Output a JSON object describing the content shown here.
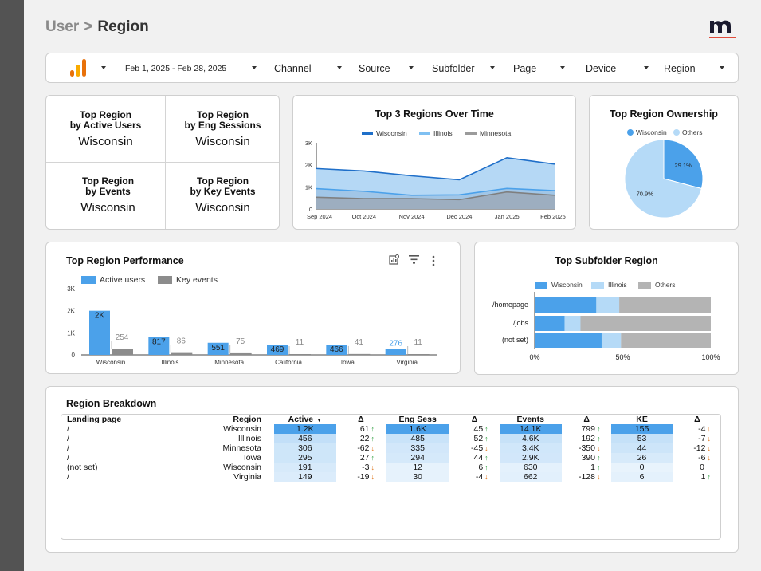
{
  "breadcrumb": {
    "parent": "User",
    "separator": ">",
    "current": "Region"
  },
  "filters": {
    "date_range": "Feb 1, 2025 - Feb 28, 2025",
    "items": [
      "Channel",
      "Source",
      "Subfolder",
      "Page",
      "Device",
      "Region"
    ]
  },
  "kpis": [
    {
      "label_1": "Top Region",
      "label_2": "by Active Users",
      "value": "Wisconsin"
    },
    {
      "label_1": "Top Region",
      "label_2": "by Eng Sessions",
      "value": "Wisconsin"
    },
    {
      "label_1": "Top Region",
      "label_2": "by Events",
      "value": "Wisconsin"
    },
    {
      "label_1": "Top Region",
      "label_2": "by Key Events",
      "value": "Wisconsin"
    }
  ],
  "colors": {
    "wisconsin": "#4ba1ea",
    "illinois": "#b5daf7",
    "minnesota": "#9b9b9b",
    "others": "#b4b4b4",
    "key_events": "#8c8c8c",
    "up": "#2a9d3c",
    "down": "#e0791f"
  },
  "chart_data": [
    {
      "type": "area",
      "title": "Top 3 Regions Over Time",
      "x": [
        "Sep 2024",
        "Oct 2024",
        "Nov 2024",
        "Dec 2024",
        "Jan 2025",
        "Feb 2025"
      ],
      "yticks": [
        "0",
        "1K",
        "2K",
        "3K"
      ],
      "ylim": [
        0,
        3000
      ],
      "series": [
        {
          "name": "Wisconsin",
          "values": [
            1830,
            1720,
            1500,
            1320,
            2320,
            2030
          ]
        },
        {
          "name": "Illinois",
          "values": [
            920,
            800,
            620,
            640,
            930,
            830
          ]
        },
        {
          "name": "Minnesota",
          "values": [
            530,
            470,
            470,
            420,
            770,
            620
          ]
        }
      ],
      "legend": "top"
    },
    {
      "type": "pie",
      "title": "Top Region Ownership",
      "slices": [
        {
          "name": "Wisconsin",
          "value": 29.1,
          "label": "29.1%"
        },
        {
          "name": "Others",
          "value": 70.9,
          "label": "70.9%"
        }
      ],
      "legend": "top"
    },
    {
      "type": "bar",
      "title": "Top Region Performance",
      "categories": [
        "Wisconsin",
        "Illinois",
        "Minnesota",
        "California",
        "Iowa",
        "Virginia"
      ],
      "yticks": [
        "0",
        "1K",
        "2K",
        "3K"
      ],
      "ylim": [
        0,
        3000
      ],
      "series": [
        {
          "name": "Active users",
          "values": [
            2000,
            817,
            551,
            469,
            466,
            276
          ],
          "labels": [
            "2K",
            "817",
            "551",
            "469",
            "466",
            "276"
          ]
        },
        {
          "name": "Key events",
          "values": [
            254,
            86,
            75,
            11,
            41,
            11
          ],
          "labels": [
            "254",
            "86",
            "75",
            "11",
            "41",
            "11"
          ]
        }
      ],
      "legend": "top-left"
    },
    {
      "type": "bar",
      "orientation": "horizontal-stacked-percent",
      "title": "Top Subfolder Region",
      "categories": [
        "/homepage",
        "/jobs",
        "(not set)"
      ],
      "xticks": [
        "0%",
        "50%",
        "100%"
      ],
      "series": [
        {
          "name": "Wisconsin",
          "values": [
            35,
            17,
            38
          ]
        },
        {
          "name": "Illinois",
          "values": [
            13,
            9,
            11
          ]
        },
        {
          "name": "Others",
          "values": [
            52,
            74,
            51
          ]
        }
      ],
      "legend": "top"
    }
  ],
  "breakdown": {
    "title": "Region Breakdown",
    "headers": {
      "landing_page": "Landing page",
      "region": "Region",
      "active": "Active",
      "delta": "Δ",
      "eng_sess": "Eng Sess",
      "events": "Events",
      "ke": "KE"
    },
    "rows": [
      {
        "lp": "/",
        "region": "Wisconsin",
        "active": "1.2K",
        "d1": "61",
        "d1_dir": "up",
        "eng": "1.6K",
        "d2": "45",
        "d2_dir": "up",
        "events": "14.1K",
        "d3": "799",
        "d3_dir": "up",
        "ke": "155",
        "d4": "-4",
        "d4_dir": "down",
        "active_f": 1.0,
        "eng_f": 1.0,
        "events_f": 1.0,
        "ke_f": 1.0
      },
      {
        "lp": "/",
        "region": "Illinois",
        "active": "456",
        "d1": "22",
        "d1_dir": "up",
        "eng": "485",
        "d2": "52",
        "d2_dir": "up",
        "events": "4.6K",
        "d3": "192",
        "d3_dir": "up",
        "ke": "53",
        "d4": "-7",
        "d4_dir": "down",
        "active_f": 0.38,
        "eng_f": 0.3,
        "events_f": 0.33,
        "ke_f": 0.34
      },
      {
        "lp": "/",
        "region": "Minnesota",
        "active": "306",
        "d1": "-62",
        "d1_dir": "down",
        "eng": "335",
        "d2": "-45",
        "d2_dir": "down",
        "events": "3.4K",
        "d3": "-350",
        "d3_dir": "down",
        "ke": "44",
        "d4": "-12",
        "d4_dir": "down",
        "active_f": 0.26,
        "eng_f": 0.21,
        "events_f": 0.24,
        "ke_f": 0.28
      },
      {
        "lp": "/",
        "region": "Iowa",
        "active": "295",
        "d1": "27",
        "d1_dir": "up",
        "eng": "294",
        "d2": "44",
        "d2_dir": "up",
        "events": "2.9K",
        "d3": "390",
        "d3_dir": "up",
        "ke": "26",
        "d4": "-6",
        "d4_dir": "down",
        "active_f": 0.25,
        "eng_f": 0.18,
        "events_f": 0.21,
        "ke_f": 0.17
      },
      {
        "lp": "(not set)",
        "region": "Wisconsin",
        "active": "191",
        "d1": "-3",
        "d1_dir": "down",
        "eng": "12",
        "d2": "6",
        "d2_dir": "up",
        "events": "630",
        "d3": "1",
        "d3_dir": "up",
        "ke": "0",
        "d4": "0",
        "d4_dir": "none",
        "active_f": 0.16,
        "eng_f": 0.01,
        "events_f": 0.04,
        "ke_f": 0.0
      },
      {
        "lp": "/",
        "region": "Virginia",
        "active": "149",
        "d1": "-19",
        "d1_dir": "down",
        "eng": "30",
        "d2": "-4",
        "d2_dir": "down",
        "events": "662",
        "d3": "-128",
        "d3_dir": "down",
        "ke": "6",
        "d4": "1",
        "d4_dir": "up",
        "active_f": 0.12,
        "eng_f": 0.02,
        "events_f": 0.05,
        "ke_f": 0.04
      }
    ]
  }
}
